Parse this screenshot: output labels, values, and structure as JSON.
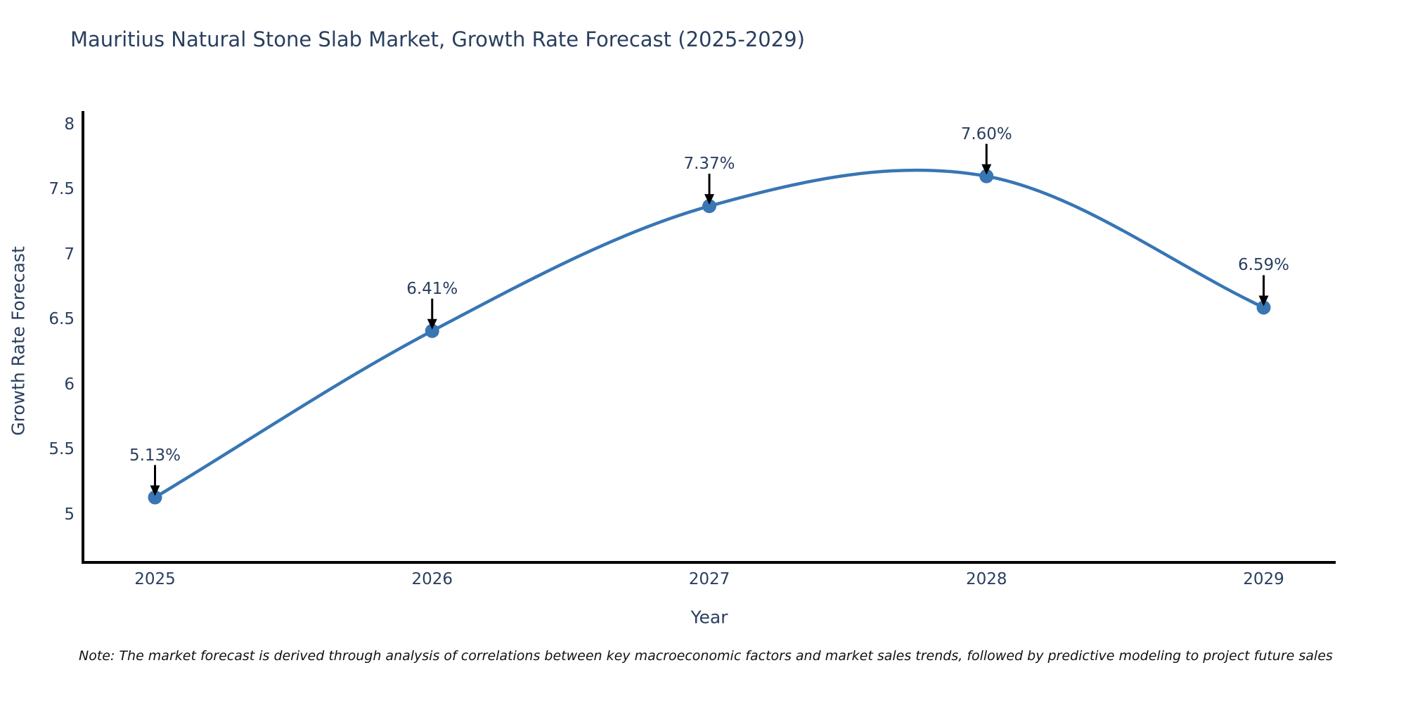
{
  "title": "Mauritius Natural Stone Slab Market, Growth Rate Forecast (2025-2029)",
  "note": "Note: The market forecast is derived through analysis of correlations between key macroeconomic factors and market sales trends, followed by predictive modeling to project future sales",
  "chart_data": {
    "type": "line",
    "title": "Mauritius Natural Stone Slab Market, Growth Rate Forecast (2025-2029)",
    "xlabel": "Year",
    "ylabel": "Growth Rate Forecast",
    "x": [
      2025,
      2026,
      2027,
      2028,
      2029
    ],
    "x_tick_labels": [
      "2025",
      "2026",
      "2027",
      "2028",
      "2029"
    ],
    "series": [
      {
        "name": "Growth Rate Forecast",
        "values": [
          5.13,
          6.41,
          7.37,
          7.6,
          6.59
        ]
      }
    ],
    "point_labels": [
      "5.13%",
      "6.41%",
      "7.37%",
      "7.60%",
      "6.59%"
    ],
    "y_tick_labels": [
      "8",
      "7.5",
      "7",
      "6.5",
      "6",
      "5.5",
      "5"
    ],
    "ylim": [
      4.63,
      8.09
    ],
    "xlim": [
      2024.74,
      2029.26
    ],
    "line_shape": "spline",
    "grid": false,
    "legend": "none",
    "colors": {
      "line": "#3876B4",
      "marker": "#3876B4",
      "text": "#2a3f5f",
      "arrow": "#000000",
      "axis": "#000000"
    }
  }
}
